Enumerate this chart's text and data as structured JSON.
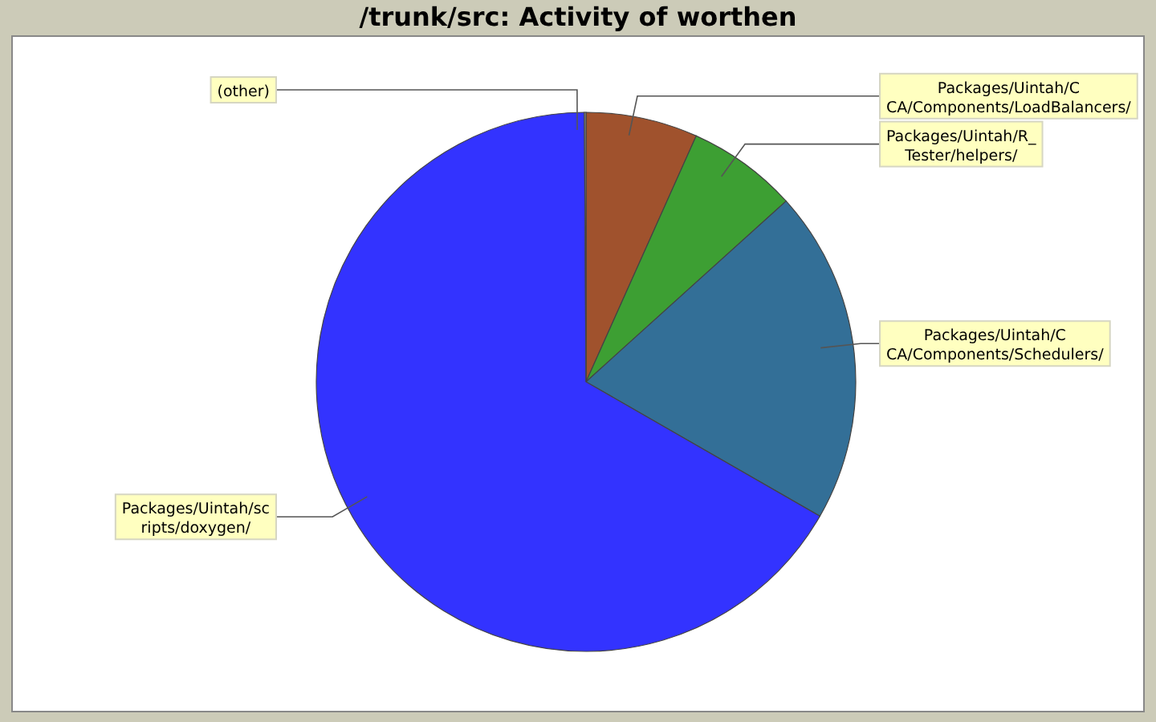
{
  "chart_data": {
    "type": "pie",
    "title": "/trunk/src: Activity of worthen",
    "categories": [
      "Packages/Uintah/CCA/Components/LoadBalancers/",
      "Packages/Uintah/R_Tester/helpers/",
      "Packages/Uintah/CCA/Components/Schedulers/",
      "Packages/Uintah/scripts/doxygen/",
      "(other)"
    ],
    "values": [
      6.7,
      6.6,
      20.0,
      66.6,
      0.1
    ],
    "colors": [
      "#a0522d",
      "#3d9f33",
      "#336f97",
      "#3333ff",
      "#999999"
    ]
  }
}
